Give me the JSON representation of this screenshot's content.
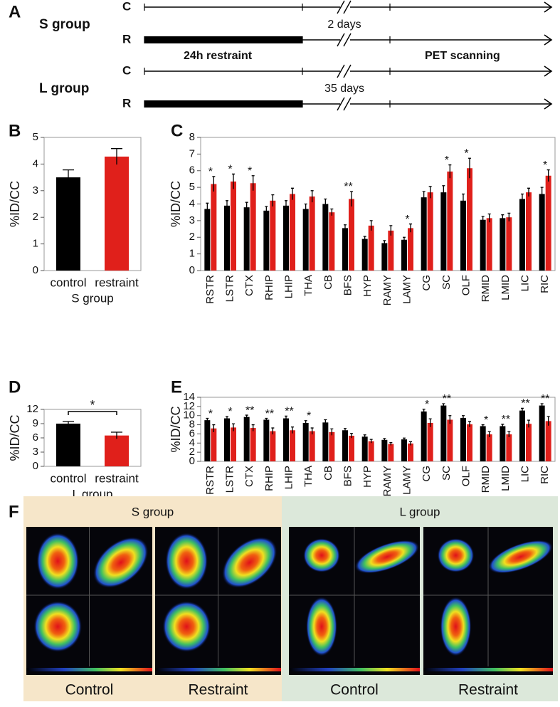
{
  "panel_a": {
    "label": "A",
    "groups": [
      {
        "name": "S group",
        "rows": [
          "C",
          "R"
        ],
        "interval": "2 days",
        "restraint_label": "24h restraint",
        "scan_label": "PET scanning"
      },
      {
        "name": "L group",
        "rows": [
          "C",
          "R"
        ],
        "interval": "35 days"
      }
    ]
  },
  "chart_data": [
    {
      "type": "bar",
      "panel": "B",
      "ylabel": "%ID/CC",
      "xlabel": "S group",
      "categories": [
        "control",
        "restraint"
      ],
      "values": [
        3.5,
        4.28
      ],
      "errors": [
        0.28,
        0.3
      ],
      "colors": [
        "#000000",
        "#e0201b"
      ],
      "ylim": [
        0,
        5
      ],
      "yticks": [
        0,
        1,
        2,
        3,
        4,
        5
      ]
    },
    {
      "type": "grouped_bar",
      "panel": "C",
      "ylabel": "%ID/CC",
      "categories": [
        "RSTR",
        "LSTR",
        "CTX",
        "RHIP",
        "LHIP",
        "THA",
        "CB",
        "BFS",
        "HYP",
        "RAMY",
        "LAMY",
        "CG",
        "SC",
        "OLF",
        "RMID",
        "LMID",
        "LIC",
        "RIC"
      ],
      "series": [
        {
          "color": "#000000",
          "values": [
            3.7,
            3.9,
            3.8,
            3.6,
            3.9,
            3.7,
            4.0,
            2.55,
            1.9,
            1.65,
            1.85,
            4.4,
            4.7,
            4.2,
            3.05,
            3.15,
            4.3,
            4.6
          ],
          "errors": [
            0.35,
            0.3,
            0.3,
            0.25,
            0.3,
            0.3,
            0.3,
            0.2,
            0.15,
            0.15,
            0.15,
            0.35,
            0.4,
            0.4,
            0.2,
            0.2,
            0.3,
            0.4
          ]
        },
        {
          "color": "#e0201b",
          "values": [
            5.2,
            5.35,
            5.25,
            4.2,
            4.6,
            4.45,
            3.5,
            4.3,
            2.7,
            2.4,
            2.55,
            4.7,
            5.95,
            6.15,
            3.15,
            3.2,
            4.7,
            5.7
          ],
          "errors": [
            0.45,
            0.45,
            0.45,
            0.35,
            0.35,
            0.35,
            0.2,
            0.45,
            0.3,
            0.3,
            0.25,
            0.35,
            0.4,
            0.6,
            0.25,
            0.25,
            0.25,
            0.35
          ]
        }
      ],
      "annotations": [
        "*",
        "*",
        "*",
        null,
        null,
        null,
        null,
        "**",
        null,
        null,
        "*",
        null,
        "*",
        "*",
        null,
        null,
        null,
        "*"
      ],
      "ylim": [
        0,
        8
      ],
      "yticks": [
        0,
        1,
        2,
        3,
        4,
        5,
        6,
        7,
        8
      ]
    },
    {
      "type": "bar",
      "panel": "D",
      "ylabel": "%ID/CC",
      "xlabel": "L group",
      "significance": "*",
      "categories": [
        "control",
        "restraint"
      ],
      "values": [
        9.0,
        6.5
      ],
      "errors": [
        0.45,
        0.7
      ],
      "colors": [
        "#000000",
        "#e0201b"
      ],
      "ylim": [
        0,
        12
      ],
      "yticks": [
        0,
        3,
        6,
        9,
        12
      ]
    },
    {
      "type": "grouped_bar",
      "panel": "E",
      "ylabel": "%ID/CC",
      "categories": [
        "RSTR",
        "LSTR",
        "CTX",
        "RHIP",
        "LHIP",
        "THA",
        "CB",
        "BFS",
        "HYP",
        "RAMY",
        "LAMY",
        "CG",
        "SC",
        "OLF",
        "RMID",
        "LMID",
        "LIC",
        "RIC"
      ],
      "series": [
        {
          "color": "#000000",
          "values": [
            9.0,
            9.4,
            9.7,
            9.1,
            9.4,
            8.4,
            8.5,
            6.8,
            5.4,
            4.7,
            4.8,
            10.9,
            12.2,
            9.5,
            7.7,
            7.7,
            11.1,
            12.2
          ],
          "errors": [
            0.4,
            0.4,
            0.4,
            0.3,
            0.5,
            0.5,
            0.6,
            0.4,
            0.4,
            0.3,
            0.3,
            0.5,
            0.4,
            0.5,
            0.3,
            0.4,
            0.5,
            0.4
          ]
        },
        {
          "color": "#e0201b",
          "values": [
            7.2,
            7.4,
            7.3,
            6.6,
            6.8,
            6.6,
            6.4,
            5.6,
            4.4,
            3.8,
            3.9,
            8.4,
            9.1,
            8.1,
            5.9,
            5.9,
            8.2,
            8.8
          ],
          "errors": [
            0.8,
            0.8,
            0.7,
            0.7,
            0.7,
            0.7,
            0.7,
            0.5,
            0.4,
            0.3,
            0.4,
            0.9,
            0.9,
            0.6,
            0.6,
            0.6,
            0.8,
            1.0
          ]
        }
      ],
      "annotations": [
        "*",
        "*",
        "**",
        "**",
        "**",
        "*",
        null,
        null,
        null,
        null,
        null,
        "*",
        "**",
        null,
        "*",
        "**",
        "**",
        "**"
      ],
      "ylim": [
        0,
        14
      ],
      "yticks": [
        0,
        2,
        4,
        6,
        8,
        10,
        12,
        14
      ]
    }
  ],
  "panel_f": {
    "label": "F",
    "groups": [
      {
        "title": "S group",
        "captions": [
          "Control",
          "Restraint"
        ]
      },
      {
        "title": "L group",
        "captions": [
          "Control",
          "Restraint"
        ]
      }
    ]
  }
}
